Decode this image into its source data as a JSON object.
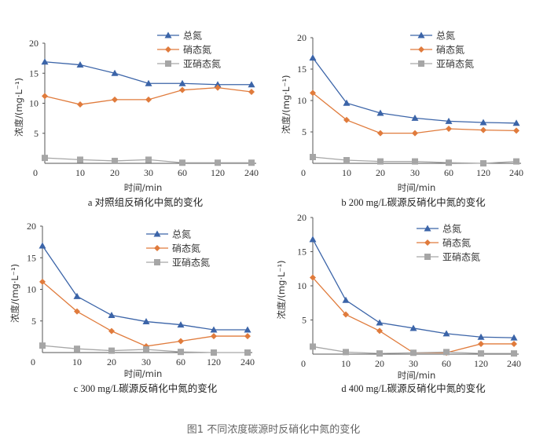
{
  "figure_caption": "图1 不同浓度碳源时反硝化中氮的变化",
  "colors": {
    "total_n": "#3b64a8",
    "nitrate_n": "#e07b3c",
    "nitrite_n": "#a6a6a6",
    "axis": "#555555"
  },
  "chart_data": [
    {
      "type": "line",
      "caption": "a 对照组反硝化中氮的变化",
      "xlabel": "时间/min",
      "ylabel": "浓度/(mg·L⁻¹)",
      "categories": [
        "0",
        "10",
        "20",
        "30",
        "60",
        "120",
        "240"
      ],
      "ylim": [
        0,
        20
      ],
      "yticks": [
        5,
        10,
        15,
        20
      ],
      "legend": "top-right",
      "series": [
        {
          "name": "总氮",
          "marker": "triangle",
          "values": [
            16.9,
            16.4,
            15.0,
            13.3,
            13.3,
            13.1,
            13.1
          ]
        },
        {
          "name": "硝态氮",
          "marker": "diamond",
          "values": [
            11.2,
            9.8,
            10.6,
            10.6,
            12.2,
            12.6,
            11.9
          ]
        },
        {
          "name": "亚硝态氮",
          "marker": "square",
          "values": [
            0.9,
            0.6,
            0.4,
            0.6,
            0.1,
            0.1,
            0.1
          ]
        }
      ]
    },
    {
      "type": "line",
      "caption": "b 200 mg/L碳源反硝化中氮的变化",
      "xlabel": "时间/min",
      "ylabel": "浓度/(mg·L⁻¹)",
      "categories": [
        "0",
        "10",
        "20",
        "30",
        "60",
        "120",
        "240"
      ],
      "ylim": [
        0,
        20
      ],
      "yticks": [
        5,
        10,
        15,
        20
      ],
      "legend": "top-right",
      "series": [
        {
          "name": "总氮",
          "marker": "triangle",
          "values": [
            16.8,
            9.6,
            8.0,
            7.2,
            6.7,
            6.5,
            6.4
          ]
        },
        {
          "name": "硝态氮",
          "marker": "diamond",
          "values": [
            11.2,
            6.9,
            4.8,
            4.8,
            5.5,
            5.3,
            5.2
          ]
        },
        {
          "name": "亚硝态氮",
          "marker": "square",
          "values": [
            1.0,
            0.5,
            0.3,
            0.3,
            0.1,
            0.0,
            0.3
          ]
        }
      ]
    },
    {
      "type": "line",
      "caption": "c 300 mg/L碳源反硝化中氮的变化",
      "xlabel": "时间/min",
      "ylabel": "浓度/(mg·L⁻¹)",
      "categories": [
        "0",
        "10",
        "20",
        "30",
        "60",
        "120",
        "240"
      ],
      "ylim": [
        0,
        20
      ],
      "yticks": [
        5,
        10,
        15,
        20
      ],
      "legend": "top-right",
      "series": [
        {
          "name": "总氮",
          "marker": "triangle",
          "values": [
            16.9,
            8.9,
            5.9,
            4.9,
            4.4,
            3.6,
            3.6
          ]
        },
        {
          "name": "硝态氮",
          "marker": "diamond",
          "values": [
            11.2,
            6.5,
            3.4,
            1.0,
            1.8,
            2.6,
            2.6
          ]
        },
        {
          "name": "亚硝态氮",
          "marker": "square",
          "values": [
            1.1,
            0.6,
            0.3,
            0.5,
            0.1,
            0.0,
            0.0
          ]
        }
      ]
    },
    {
      "type": "line",
      "caption": "d 400 mg/L碳源反硝化中氮的变化",
      "xlabel": "时间/min",
      "ylabel": "浓度/(mg·L⁻¹)",
      "categories": [
        "0",
        "10",
        "20",
        "30",
        "60",
        "120",
        "240"
      ],
      "ylim": [
        0,
        20
      ],
      "yticks": [
        5,
        10,
        15,
        20
      ],
      "legend": "top-right",
      "series": [
        {
          "name": "总氮",
          "marker": "triangle",
          "values": [
            16.8,
            7.9,
            4.6,
            3.8,
            3.0,
            2.5,
            2.4
          ]
        },
        {
          "name": "硝态氮",
          "marker": "diamond",
          "values": [
            11.2,
            5.8,
            3.4,
            0.2,
            0.2,
            1.5,
            1.5
          ]
        },
        {
          "name": "亚硝态氮",
          "marker": "square",
          "values": [
            1.1,
            0.3,
            0.1,
            0.2,
            0.3,
            0.1,
            0.1
          ]
        }
      ]
    }
  ]
}
